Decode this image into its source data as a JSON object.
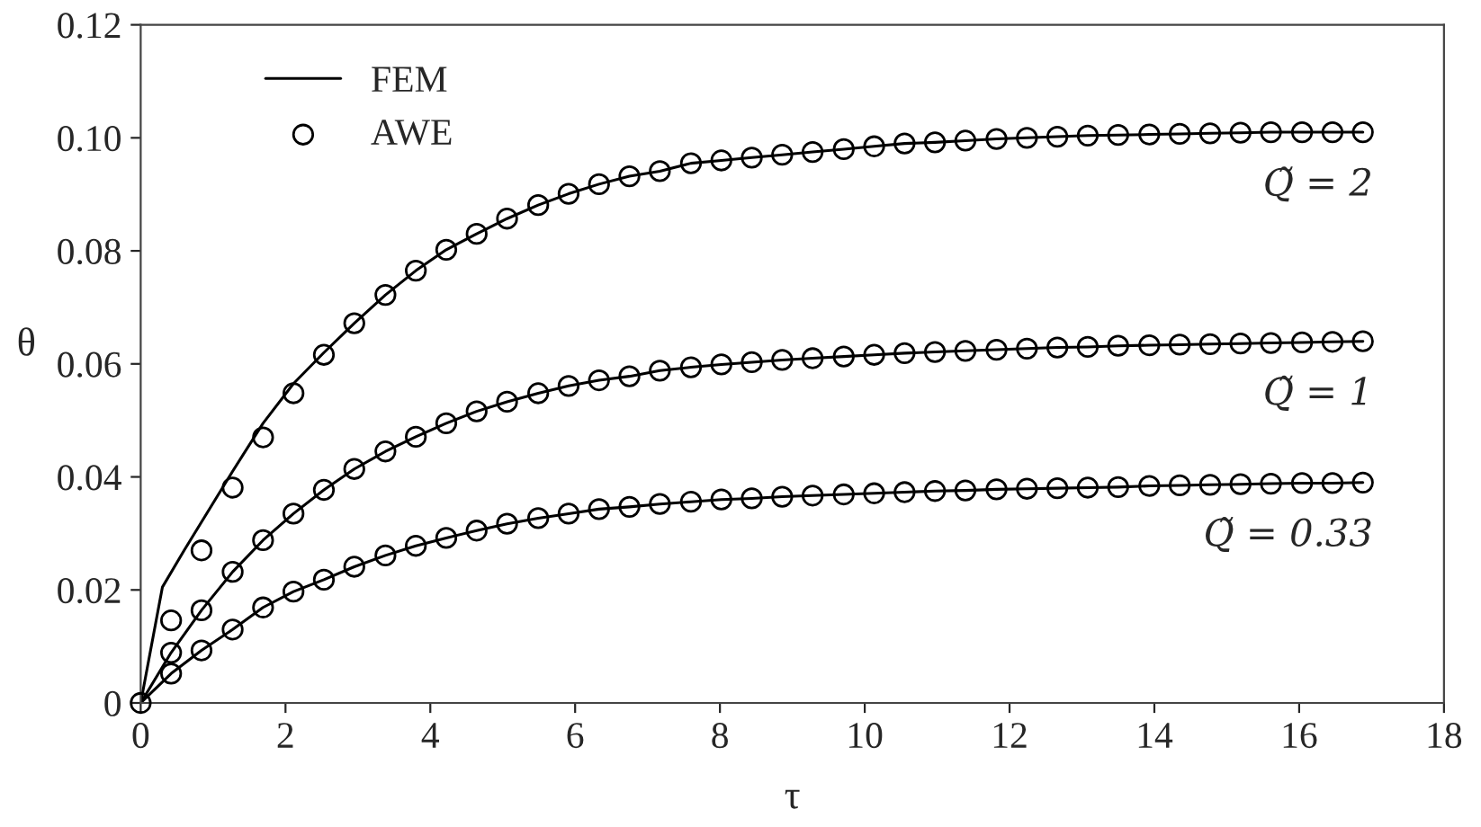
{
  "chart_data": {
    "type": "line",
    "xlabel": "τ",
    "ylabel": "θ",
    "xlim": [
      0,
      18
    ],
    "ylim": [
      0,
      0.12
    ],
    "xticks": [
      0,
      2,
      4,
      6,
      8,
      10,
      12,
      14,
      16,
      18
    ],
    "yticks": [
      {
        "value": 0,
        "label": "0"
      },
      {
        "value": 0.02,
        "label": "0.02"
      },
      {
        "value": 0.04,
        "label": "0.04"
      },
      {
        "value": 0.06,
        "label": "0.06"
      },
      {
        "value": 0.08,
        "label": "0.08"
      },
      {
        "value": 0.1,
        "label": "0.10"
      },
      {
        "value": 0.12,
        "label": "0.12"
      }
    ],
    "grid": false,
    "legend": "top left",
    "line_style": "solid",
    "series": [
      {
        "name": "FEM",
        "color": "#000000",
        "x": [
          0,
          0.3,
          0.6,
          1.27,
          1.69,
          2.11,
          2.53,
          2.95,
          3.38,
          3.8,
          4.22,
          4.64,
          5.06,
          5.49,
          5.91,
          6.33,
          6.75,
          7.17,
          7.6,
          8.02,
          8.44,
          8.86,
          9.28,
          9.71,
          10.13,
          10.55,
          10.97,
          11.39,
          11.82,
          12.24,
          12.66,
          13.08,
          13.5,
          13.93,
          14.35,
          14.77,
          15.19,
          15.61,
          16.04,
          16.46,
          16.88
        ],
        "values": [
          0,
          0.0205,
          0.027,
          0.041,
          0.0495,
          0.0565,
          0.062,
          0.0672,
          0.0722,
          0.0765,
          0.0802,
          0.083,
          0.0857,
          0.0881,
          0.0901,
          0.0918,
          0.0932,
          0.0941,
          0.0955,
          0.096,
          0.0965,
          0.097,
          0.0975,
          0.098,
          0.0985,
          0.099,
          0.0992,
          0.0995,
          0.0998,
          0.1,
          0.1002,
          0.1004,
          0.1005,
          0.1006,
          0.1007,
          0.1008,
          0.1009,
          0.101,
          0.101,
          0.101,
          0.101
        ]
      },
      {
        "color": "#000000",
        "x": [
          0,
          0.42,
          0.84,
          1.27,
          1.69,
          2.11,
          2.53,
          2.95,
          3.38,
          3.8,
          4.22,
          4.64,
          5.06,
          5.49,
          5.91,
          6.33,
          6.75,
          7.17,
          7.6,
          8.02,
          8.44,
          8.86,
          9.28,
          9.71,
          10.13,
          10.55,
          10.97,
          11.39,
          11.82,
          12.24,
          12.66,
          13.08,
          13.5,
          13.93,
          14.35,
          14.77,
          15.19,
          15.61,
          16.04,
          16.46,
          16.88
        ],
        "values": [
          0,
          0.0089,
          0.0164,
          0.0232,
          0.0288,
          0.0335,
          0.0377,
          0.0414,
          0.0445,
          0.0471,
          0.0495,
          0.0516,
          0.0533,
          0.0548,
          0.0561,
          0.0571,
          0.0578,
          0.0588,
          0.0594,
          0.0599,
          0.0603,
          0.0607,
          0.061,
          0.0613,
          0.0616,
          0.0619,
          0.0621,
          0.0623,
          0.0625,
          0.0627,
          0.0629,
          0.063,
          0.0632,
          0.0633,
          0.0634,
          0.0635,
          0.0636,
          0.0637,
          0.0638,
          0.0639,
          0.064
        ]
      },
      {
        "color": "#000000",
        "x": [
          0,
          0.42,
          0.84,
          1.27,
          1.69,
          2.11,
          2.53,
          2.95,
          3.38,
          3.8,
          4.22,
          4.64,
          5.06,
          5.49,
          5.91,
          6.33,
          6.75,
          7.17,
          7.6,
          8.02,
          8.44,
          8.86,
          9.28,
          9.71,
          10.13,
          10.55,
          10.97,
          11.39,
          11.82,
          12.24,
          12.66,
          13.08,
          13.5,
          13.93,
          14.35,
          14.77,
          15.19,
          15.61,
          16.04,
          16.46,
          16.88
        ],
        "values": [
          0,
          0.0052,
          0.0093,
          0.013,
          0.0169,
          0.0197,
          0.0218,
          0.0241,
          0.0261,
          0.0278,
          0.0292,
          0.0305,
          0.0317,
          0.0327,
          0.0335,
          0.0343,
          0.0347,
          0.0352,
          0.0356,
          0.036,
          0.0362,
          0.0365,
          0.0367,
          0.0369,
          0.0371,
          0.0373,
          0.0375,
          0.0376,
          0.0378,
          0.0379,
          0.038,
          0.0381,
          0.0382,
          0.0384,
          0.0385,
          0.0386,
          0.0387,
          0.0388,
          0.0389,
          0.0389,
          0.039
        ]
      },
      {
        "type": "scatter",
        "name": "AWE",
        "marker": "circle",
        "color": "#000000",
        "x": [
          0,
          0.42,
          0.84,
          1.27,
          1.69,
          2.11,
          2.53,
          2.95,
          3.38,
          3.8,
          4.22,
          4.64,
          5.06,
          5.49,
          5.91,
          6.33,
          6.75,
          7.17,
          7.6,
          8.02,
          8.44,
          8.86,
          9.28,
          9.71,
          10.13,
          10.55,
          10.97,
          11.39,
          11.82,
          12.24,
          12.66,
          13.08,
          13.5,
          13.93,
          14.35,
          14.77,
          15.19,
          15.61,
          16.04,
          16.46,
          16.88
        ],
        "values": [
          0,
          0.0146,
          0.027,
          0.0381,
          0.047,
          0.0548,
          0.0616,
          0.0672,
          0.0722,
          0.0765,
          0.0802,
          0.083,
          0.0857,
          0.0881,
          0.0901,
          0.0918,
          0.0932,
          0.0941,
          0.0955,
          0.096,
          0.0965,
          0.097,
          0.0975,
          0.098,
          0.0985,
          0.099,
          0.0992,
          0.0995,
          0.0998,
          0.1,
          0.1002,
          0.1004,
          0.1005,
          0.1006,
          0.1007,
          0.1008,
          0.1009,
          0.101,
          0.101,
          0.101,
          0.101
        ]
      },
      {
        "type": "scatter",
        "marker": "circle",
        "color": "#000000",
        "x": [
          0.42,
          0.84,
          1.27,
          1.69,
          2.11,
          2.53,
          2.95,
          3.38,
          3.8,
          4.22,
          4.64,
          5.06,
          5.49,
          5.91,
          6.33,
          6.75,
          7.17,
          7.6,
          8.02,
          8.44,
          8.86,
          9.28,
          9.71,
          10.13,
          10.55,
          10.97,
          11.39,
          11.82,
          12.24,
          12.66,
          13.08,
          13.5,
          13.93,
          14.35,
          14.77,
          15.19,
          15.61,
          16.04,
          16.46,
          16.88
        ],
        "values": [
          0.0089,
          0.0164,
          0.0232,
          0.0288,
          0.0335,
          0.0377,
          0.0414,
          0.0445,
          0.0471,
          0.0495,
          0.0516,
          0.0533,
          0.0548,
          0.0561,
          0.0571,
          0.0578,
          0.0588,
          0.0594,
          0.0599,
          0.0603,
          0.0607,
          0.061,
          0.0613,
          0.0616,
          0.0619,
          0.0621,
          0.0623,
          0.0625,
          0.0627,
          0.0629,
          0.063,
          0.0632,
          0.0633,
          0.0634,
          0.0635,
          0.0636,
          0.0637,
          0.0638,
          0.0639,
          0.064
        ]
      },
      {
        "type": "scatter",
        "marker": "circle",
        "color": "#000000",
        "x": [
          0.42,
          0.84,
          1.27,
          1.69,
          2.11,
          2.53,
          2.95,
          3.38,
          3.8,
          4.22,
          4.64,
          5.06,
          5.49,
          5.91,
          6.33,
          6.75,
          7.17,
          7.6,
          8.02,
          8.44,
          8.86,
          9.28,
          9.71,
          10.13,
          10.55,
          10.97,
          11.39,
          11.82,
          12.24,
          12.66,
          13.08,
          13.5,
          13.93,
          14.35,
          14.77,
          15.19,
          15.61,
          16.04,
          16.46,
          16.88
        ],
        "values": [
          0.0052,
          0.0093,
          0.013,
          0.0169,
          0.0197,
          0.0218,
          0.0241,
          0.0261,
          0.0278,
          0.0292,
          0.0305,
          0.0317,
          0.0327,
          0.0335,
          0.0343,
          0.0347,
          0.0352,
          0.0356,
          0.036,
          0.0362,
          0.0365,
          0.0367,
          0.0369,
          0.0371,
          0.0373,
          0.0375,
          0.0376,
          0.0378,
          0.0379,
          0.038,
          0.0381,
          0.0382,
          0.0384,
          0.0385,
          0.0386,
          0.0387,
          0.0388,
          0.0389,
          0.0389,
          0.039
        ]
      }
    ],
    "annotations": [
      "Q̃ = 2",
      "Q̃ = 1",
      "Q̃ = 0.33"
    ]
  }
}
